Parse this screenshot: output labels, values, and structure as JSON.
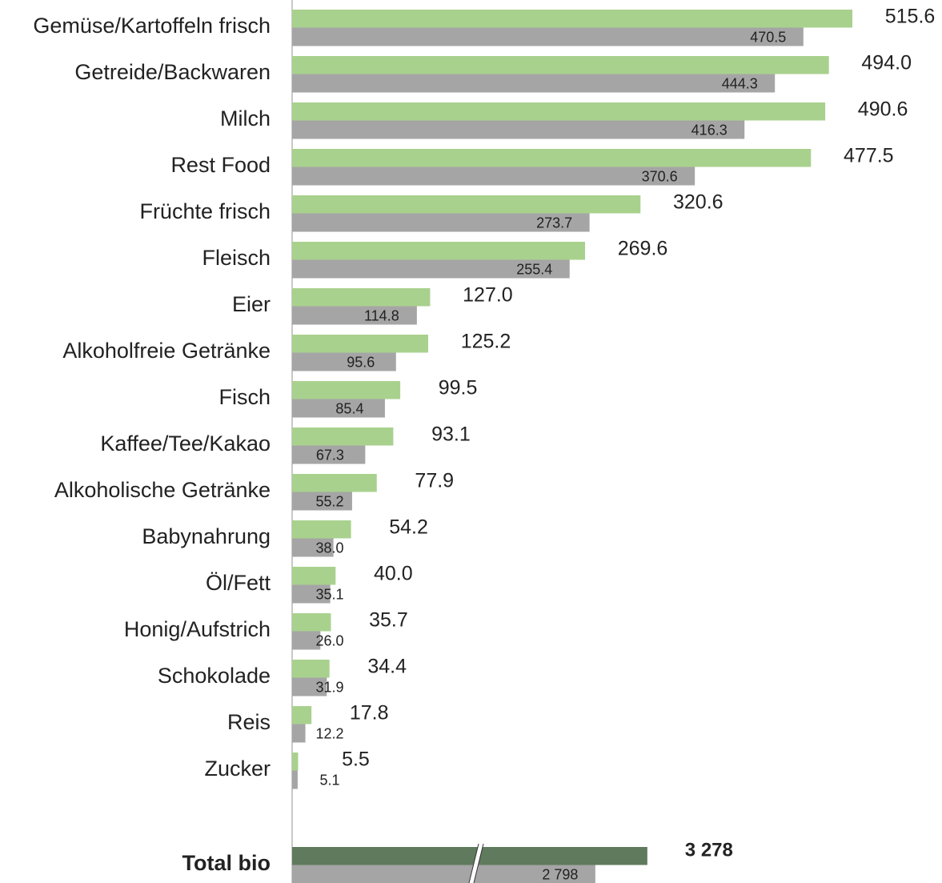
{
  "chart_data": [
    {
      "type": "bar",
      "orientation": "horizontal",
      "categories": [
        "Gemüse/Kartoffeln frisch",
        "Getreide/Backwaren",
        "Milch",
        "Rest Food",
        "Früchte frisch",
        "Fleisch",
        "Eier",
        "Alkoholfreie Getränke",
        "Fisch",
        "Kaffee/Tee/Kakao",
        "Alkoholische Getränke",
        "Babynahrung",
        "Öl/Fett",
        "Honig/Aufstrich",
        "Schokolade",
        "Reis",
        "Zucker"
      ],
      "series": [
        {
          "color": "#a9d18e",
          "values": [
            515.6,
            494.0,
            490.6,
            477.5,
            320.6,
            269.6,
            127.0,
            125.2,
            99.5,
            93.1,
            77.9,
            54.2,
            40.0,
            35.7,
            34.4,
            17.8,
            5.5
          ],
          "value_labels": [
            "515.6",
            "494.0",
            "490.6",
            "477.5",
            "320.6",
            "269.6",
            "127.0",
            "125.2",
            "99.5",
            "93.1",
            "77.9",
            "54.2",
            "40.0",
            "35.7",
            "34.4",
            "17.8",
            "5.5"
          ]
        },
        {
          "color": "#a5a5a5",
          "values": [
            470.5,
            444.3,
            416.3,
            370.6,
            273.7,
            255.4,
            114.8,
            95.6,
            85.4,
            67.3,
            55.2,
            38.0,
            35.1,
            26.0,
            31.9,
            12.2,
            5.1
          ],
          "value_labels": [
            "470.5",
            "444.3",
            "416.3",
            "370.6",
            "273.7",
            "255.4",
            "114.8",
            "95.6",
            "85.4",
            "67.3",
            "55.2",
            "38.0",
            "35.1",
            "26.0",
            "31.9",
            "12.2",
            "5.1"
          ]
        }
      ],
      "xlim": [
        0,
        520
      ]
    },
    {
      "type": "bar",
      "orientation": "horizontal",
      "axis_break": true,
      "categories": [
        "Total bio"
      ],
      "series": [
        {
          "color": "#5f7a5c",
          "values": [
            3278
          ],
          "value_labels": [
            "3 278"
          ]
        },
        {
          "color": "#a5a5a5",
          "values": [
            2798
          ],
          "value_labels": [
            "2 798"
          ]
        }
      ],
      "xlim": [
        0,
        5170
      ]
    }
  ]
}
